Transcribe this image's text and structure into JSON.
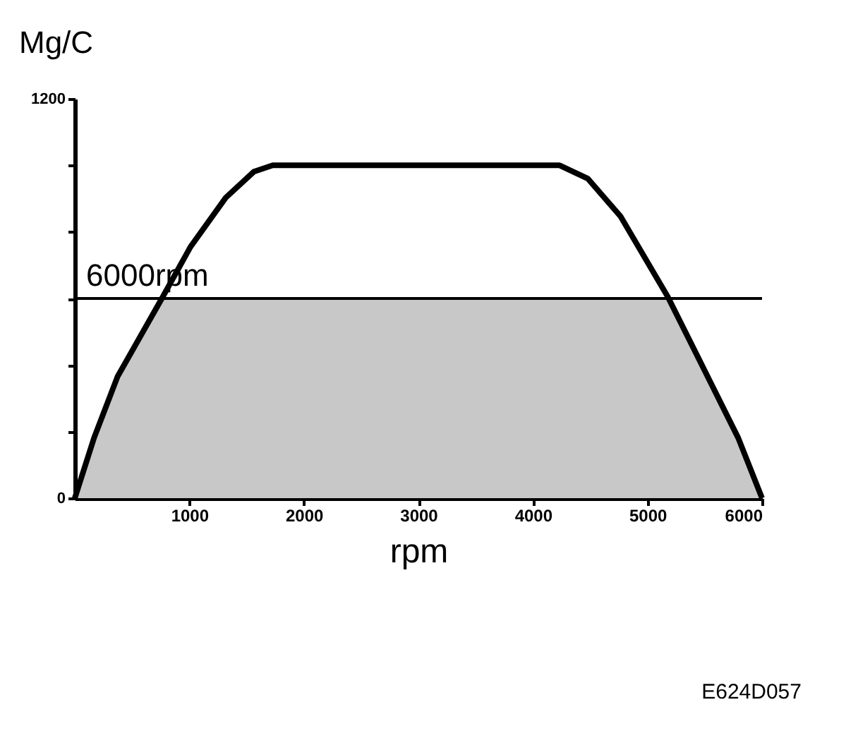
{
  "chart_data": {
    "type": "line",
    "ylabel": "Mg/C",
    "xlabel": "rpm",
    "xlim": [
      0,
      6000
    ],
    "xticks": [
      1000,
      2000,
      3000,
      4000,
      5000,
      6000
    ],
    "ylim": [
      0,
      1200
    ],
    "yticks": [
      0,
      {
        "value": 200,
        "label": null
      },
      {
        "value": 400,
        "label": null
      },
      {
        "value": 600,
        "label": null
      },
      {
        "value": 800,
        "label": null
      },
      {
        "value": 1000,
        "label": null
      },
      1200
    ],
    "series": [
      {
        "type": "area",
        "color": "#c8c8c8",
        "x": [
          0,
          168,
          373,
          760,
          5176,
          5546,
          5792,
          6000
        ],
        "values": [
          0,
          181,
          365,
          600,
          600,
          351,
          181,
          0
        ]
      },
      {
        "type": "line",
        "color": "#000000",
        "x": [
          0,
          168,
          373,
          760,
          1010,
          1318,
          1564,
          1728,
          4233,
          4479,
          4766,
          5176,
          5546,
          5792,
          6000
        ],
        "values": [
          0,
          181,
          365,
          600,
          755,
          903,
          981,
          1000,
          1000,
          960,
          846,
          606,
          351,
          181,
          0
        ]
      }
    ],
    "ref_lines": [
      {
        "axis": "y",
        "value": 600,
        "label": "6000rpm",
        "color": "#000000"
      }
    ],
    "annotations": [
      "E624D057"
    ],
    "grid": false,
    "marker": "none",
    "line_style": "solid"
  }
}
